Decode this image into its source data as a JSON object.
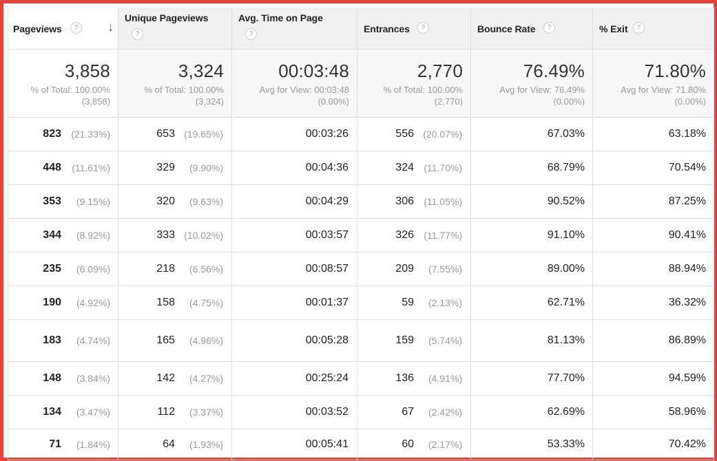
{
  "header": {
    "columns": [
      {
        "label": "Pageviews",
        "help": "?"
      },
      {
        "label": "Unique Pageviews",
        "help": "?"
      },
      {
        "label": "Avg. Time on Page",
        "help": "?"
      },
      {
        "label": "Entrances",
        "help": "?"
      },
      {
        "label": "Bounce Rate",
        "help": "?"
      },
      {
        "label": "% Exit",
        "help": "?"
      }
    ],
    "sort_arrow": "↓"
  },
  "totals": [
    {
      "value": "3,858",
      "line1": "% of Total: 100.00%",
      "line2": "(3,858)"
    },
    {
      "value": "3,324",
      "line1": "% of Total: 100.00%",
      "line2": "(3,324)"
    },
    {
      "value": "00:03:48",
      "line1": "Avg for View: 00:03:48",
      "line2": "(0.00%)"
    },
    {
      "value": "2,770",
      "line1": "% of Total: 100.00%",
      "line2": "(2,770)"
    },
    {
      "value": "76.49%",
      "line1": "Avg for View: 76.49%",
      "line2": "(0.00%)"
    },
    {
      "value": "71.80%",
      "line1": "Avg for View: 71.80%",
      "line2": "(0.00%)"
    }
  ],
  "rows": [
    {
      "pv": "823",
      "pv_pct": "(21.33%)",
      "upv": "653",
      "upv_pct": "(19.65%)",
      "time": "00:03:26",
      "ent": "556",
      "ent_pct": "(20.07%)",
      "bounce": "67.03%",
      "exit": "63.18%"
    },
    {
      "pv": "448",
      "pv_pct": "(11.61%)",
      "upv": "329",
      "upv_pct": "(9.90%)",
      "time": "00:04:36",
      "ent": "324",
      "ent_pct": "(11.70%)",
      "bounce": "68.79%",
      "exit": "70.54%"
    },
    {
      "pv": "353",
      "pv_pct": "(9.15%)",
      "upv": "320",
      "upv_pct": "(9.63%)",
      "time": "00:04:29",
      "ent": "306",
      "ent_pct": "(11.05%)",
      "bounce": "90.52%",
      "exit": "87.25%"
    },
    {
      "pv": "344",
      "pv_pct": "(8.92%)",
      "upv": "333",
      "upv_pct": "(10.02%)",
      "time": "00:03:57",
      "ent": "326",
      "ent_pct": "(11.77%)",
      "bounce": "91.10%",
      "exit": "90.41%"
    },
    {
      "pv": "235",
      "pv_pct": "(6.09%)",
      "upv": "218",
      "upv_pct": "(6.56%)",
      "time": "00:08:57",
      "ent": "209",
      "ent_pct": "(7.55%)",
      "bounce": "89.00%",
      "exit": "88.94%"
    },
    {
      "pv": "190",
      "pv_pct": "(4.92%)",
      "upv": "158",
      "upv_pct": "(4.75%)",
      "time": "00:01:37",
      "ent": "59",
      "ent_pct": "(2.13%)",
      "bounce": "62.71%",
      "exit": "36.32%"
    },
    {
      "pv": "183",
      "pv_pct": "(4.74%)",
      "upv": "165",
      "upv_pct": "(4.96%)",
      "time": "00:05:28",
      "ent": "159",
      "ent_pct": "(5.74%)",
      "bounce": "81.13%",
      "exit": "86.89%"
    },
    {
      "pv": "148",
      "pv_pct": "(3.84%)",
      "upv": "142",
      "upv_pct": "(4.27%)",
      "time": "00:25:24",
      "ent": "136",
      "ent_pct": "(4.91%)",
      "bounce": "77.70%",
      "exit": "94.59%"
    },
    {
      "pv": "134",
      "pv_pct": "(3.47%)",
      "upv": "112",
      "upv_pct": "(3.37%)",
      "time": "00:03:52",
      "ent": "67",
      "ent_pct": "(2.42%)",
      "bounce": "62.69%",
      "exit": "58.96%"
    },
    {
      "pv": "71",
      "pv_pct": "(1.84%)",
      "upv": "64",
      "upv_pct": "(1.93%)",
      "time": "00:05:41",
      "ent": "60",
      "ent_pct": "(2.17%)",
      "bounce": "53.33%",
      "exit": "70.42%"
    }
  ],
  "colors": {
    "frame_border": "#e2443a",
    "header_bg": "#f1f1f1",
    "alt_col_bg": "#f7f7f7",
    "muted_text": "#9a9a9a"
  }
}
